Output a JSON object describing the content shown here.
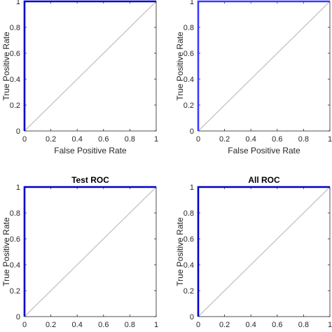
{
  "chart_data": [
    {
      "type": "line",
      "title": "",
      "xlabel": "False Positive Rate",
      "ylabel": "True Positive Rate",
      "xlim": [
        0,
        1
      ],
      "ylim": [
        0,
        1
      ],
      "x_ticks": [
        "0",
        "0.2",
        "0.4",
        "0.6",
        "0.8",
        "1"
      ],
      "y_ticks": [
        "0",
        "0.2",
        "0.4",
        "0.6",
        "0.8",
        "1"
      ],
      "grid": false,
      "series": [
        {
          "color": "#0000c8",
          "x": [
            0,
            0,
            1
          ],
          "y": [
            0,
            1,
            1
          ]
        },
        {
          "color": "#c4c4c4",
          "x": [
            0,
            1
          ],
          "y": [
            0,
            1
          ]
        }
      ]
    },
    {
      "type": "line",
      "title": "",
      "xlabel": "False Positive Rate",
      "ylabel": "True Positive Rate",
      "xlim": [
        0,
        1
      ],
      "ylim": [
        0,
        1
      ],
      "x_ticks": [
        "0",
        "0.2",
        "0.4",
        "0.6",
        "0.8",
        "1"
      ],
      "y_ticks": [
        "0",
        "0.2",
        "0.4",
        "0.6",
        "0.8",
        "1"
      ],
      "grid": false,
      "series": [
        {
          "color": "#3a3aff",
          "x": [
            0,
            0,
            1
          ],
          "y": [
            0,
            1,
            1
          ]
        },
        {
          "color": "#c4c4c4",
          "x": [
            0,
            1
          ],
          "y": [
            0,
            1
          ]
        }
      ]
    },
    {
      "type": "line",
      "title": "Test ROC",
      "xlabel": "",
      "ylabel": "True Positive Rate",
      "xlim": [
        0,
        1
      ],
      "ylim": [
        0,
        1
      ],
      "x_ticks": [
        "0",
        "0.2",
        "0.4",
        "0.6",
        "0.8",
        "1"
      ],
      "y_ticks": [
        "0",
        "0.2",
        "0.4",
        "0.6",
        "0.8",
        "1"
      ],
      "grid": false,
      "series": [
        {
          "color": "#0000c8",
          "x": [
            0,
            0,
            1
          ],
          "y": [
            0,
            1,
            1
          ]
        },
        {
          "color": "#c4c4c4",
          "x": [
            0,
            1
          ],
          "y": [
            0,
            1
          ]
        }
      ]
    },
    {
      "type": "line",
      "title": "All ROC",
      "xlabel": "",
      "ylabel": "True Positive Rate",
      "xlim": [
        0,
        1
      ],
      "ylim": [
        0,
        1
      ],
      "x_ticks": [
        "0",
        "0.2",
        "0.4",
        "0.6",
        "0.8",
        "1"
      ],
      "y_ticks": [
        "0",
        "0.2",
        "0.4",
        "0.6",
        "0.8",
        "1"
      ],
      "grid": false,
      "series": [
        {
          "color": "#0000c8",
          "x": [
            0,
            0,
            1
          ],
          "y": [
            0,
            1,
            1
          ]
        },
        {
          "color": "#c4c4c4",
          "x": [
            0,
            1
          ],
          "y": [
            0,
            1
          ]
        }
      ]
    }
  ]
}
